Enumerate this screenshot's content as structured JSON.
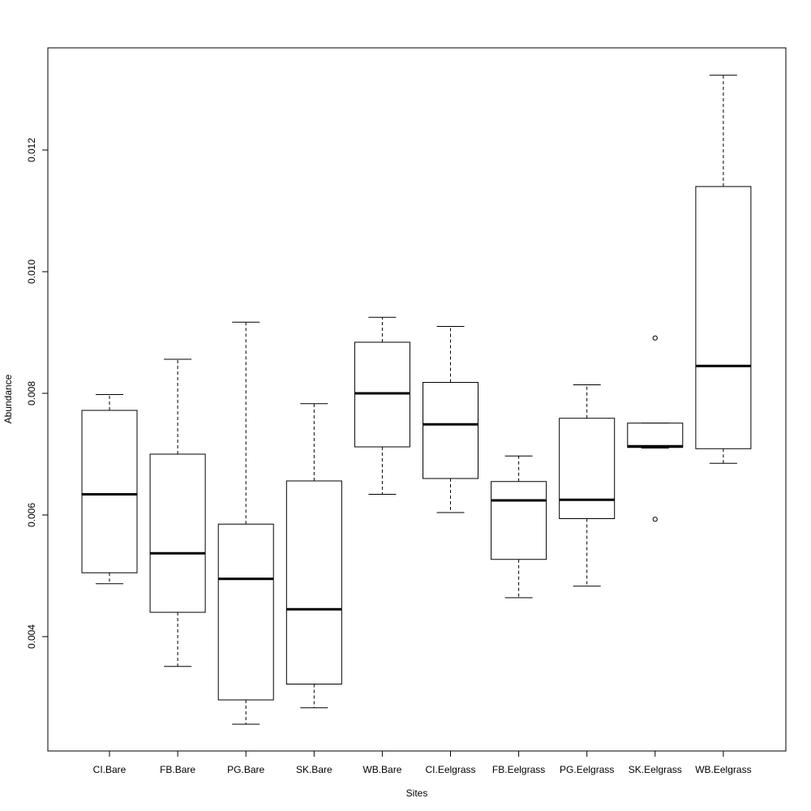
{
  "chart_data": {
    "type": "boxplot",
    "xlabel": "Sites",
    "ylabel": "Abundance",
    "ylim": [
      0.0023,
      0.0138
    ],
    "yticks": [
      0.004,
      0.006,
      0.008,
      0.01,
      0.012
    ],
    "ytick_labels": [
      "0.004",
      "0.006",
      "0.008",
      "0.010",
      "0.012"
    ],
    "categories": [
      "CI.Bare",
      "FB.Bare",
      "PG.Bare",
      "SK.Bare",
      "WB.Bare",
      "CI.Eelgrass",
      "FB.Eelgrass",
      "PG.Eelgrass",
      "SK.Eelgrass",
      "WB.Eelgrass"
    ],
    "boxes": [
      {
        "min": 0.00487,
        "q1": 0.00505,
        "median": 0.00634,
        "q3": 0.00772,
        "max": 0.00798,
        "outliers": []
      },
      {
        "min": 0.00351,
        "q1": 0.0044,
        "median": 0.00537,
        "q3": 0.007,
        "max": 0.00856,
        "outliers": []
      },
      {
        "min": 0.00256,
        "q1": 0.00296,
        "median": 0.00495,
        "q3": 0.00585,
        "max": 0.00917,
        "outliers": []
      },
      {
        "min": 0.00283,
        "q1": 0.00322,
        "median": 0.00445,
        "q3": 0.00656,
        "max": 0.00783,
        "outliers": []
      },
      {
        "min": 0.00634,
        "q1": 0.00712,
        "median": 0.008,
        "q3": 0.00884,
        "max": 0.00925,
        "outliers": []
      },
      {
        "min": 0.00604,
        "q1": 0.0066,
        "median": 0.00749,
        "q3": 0.00818,
        "max": 0.0091,
        "outliers": []
      },
      {
        "min": 0.00464,
        "q1": 0.00527,
        "median": 0.00624,
        "q3": 0.00655,
        "max": 0.00697,
        "outliers": []
      },
      {
        "min": 0.00483,
        "q1": 0.00594,
        "median": 0.00625,
        "q3": 0.00759,
        "max": 0.00814,
        "outliers": []
      },
      {
        "min": 0.0071,
        "q1": 0.00711,
        "median": 0.00713,
        "q3": 0.00751,
        "max": 0.00751,
        "outliers": [
          0.00891,
          0.00593
        ]
      },
      {
        "min": 0.00685,
        "q1": 0.00709,
        "median": 0.00845,
        "q3": 0.0114,
        "max": 0.01323,
        "outliers": []
      }
    ],
    "grid": false,
    "legend": "none"
  }
}
